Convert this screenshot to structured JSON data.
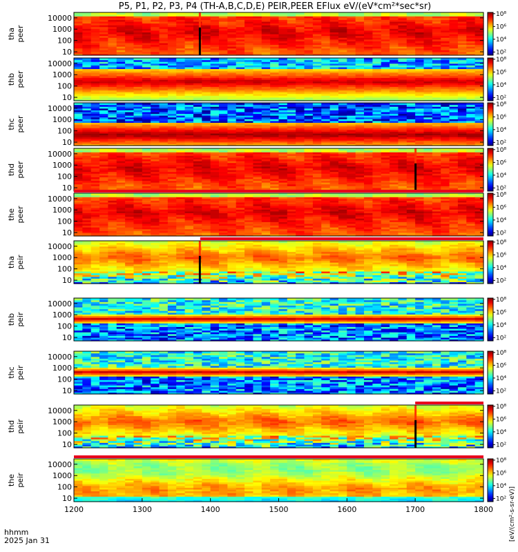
{
  "chart_data": {
    "type": "heatmap",
    "title": "P5, P1, P2, P3, P4 (TH-A,B,C,D,E) PEIR,PEER EFlux eV/(eV*cm²*sec*sr)",
    "x_axis": {
      "label_line1": "hhmm",
      "label_line2": "2025 Jan 31",
      "range": [
        1200,
        1800
      ],
      "ticks": [
        "1200",
        "1300",
        "1400",
        "1500",
        "1600",
        "1700",
        "1800"
      ]
    },
    "y_ticks": [
      "10",
      "100",
      "1000",
      "10000"
    ],
    "y_range_eV": [
      5,
      30000
    ],
    "y_scale": "log",
    "colorbar_label": "[eV/(cm²-s-sr-eV)]",
    "colorbar_ticks": [
      "10²",
      "10⁴",
      "10⁶",
      "10⁸"
    ],
    "colorbar_range_log10": [
      1.5,
      8.2
    ],
    "panels": [
      {
        "probe": "tha",
        "species": "peer",
        "label_top": "tha",
        "label_bottom": "peer",
        "profile": "e-hot",
        "gap": [
          1383,
          1386
        ],
        "bar": null
      },
      {
        "probe": "thb",
        "species": "peer",
        "label_top": "thb",
        "label_bottom": "peer",
        "profile": "e-mid",
        "gap": null,
        "bar": null
      },
      {
        "probe": "thc",
        "species": "peer",
        "label_top": "thc",
        "label_bottom": "peer",
        "profile": "e-cold",
        "gap": null,
        "bar": null
      },
      {
        "probe": "thd",
        "species": "peer",
        "label_top": "thd",
        "label_bottom": "peer",
        "profile": "e-hot",
        "gap": [
          1699,
          1702
        ],
        "bar": null
      },
      {
        "probe": "the",
        "species": "peer",
        "label_top": "the",
        "label_bottom": "peer",
        "profile": "e-hot",
        "gap": null,
        "bar": [
          1200,
          1800
        ]
      },
      {
        "probe": "tha",
        "species": "peir",
        "label_top": "tha",
        "label_bottom": "peir",
        "profile": "i-hot",
        "gap": [
          1383,
          1386
        ],
        "bar": [
          1385,
          1800
        ]
      },
      {
        "probe": "thb",
        "species": "peir",
        "label_top": "thb",
        "label_bottom": "peir",
        "profile": "i-band",
        "gap": null,
        "bar": null
      },
      {
        "probe": "thc",
        "species": "peir",
        "label_top": "thc",
        "label_bottom": "peir",
        "profile": "i-band",
        "gap": null,
        "bar": null
      },
      {
        "probe": "thd",
        "species": "peir",
        "label_top": "thd",
        "label_bottom": "peir",
        "profile": "i-hot",
        "gap": [
          1699,
          1702
        ],
        "bar": [
          1700,
          1800
        ]
      },
      {
        "probe": "the",
        "species": "peir",
        "label_top": "the",
        "label_bottom": "peir",
        "profile": "i-warm",
        "gap": null,
        "bar": [
          1200,
          1800
        ]
      }
    ]
  }
}
